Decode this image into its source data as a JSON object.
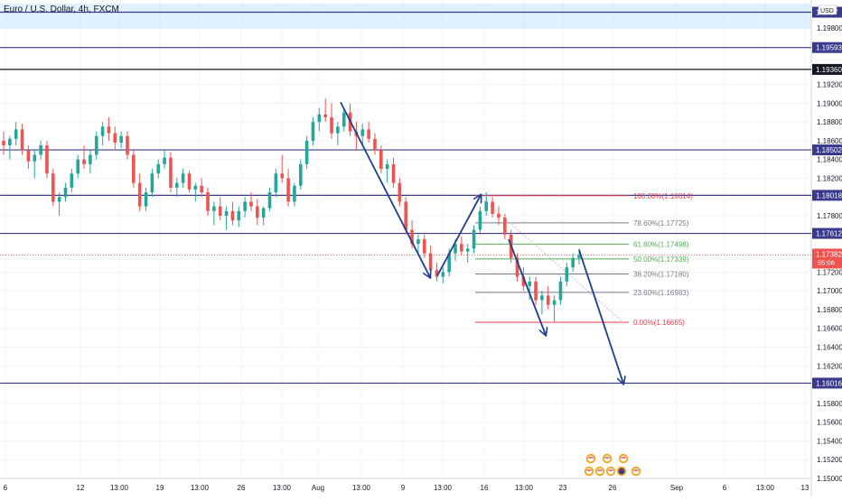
{
  "header": {
    "title": "Euro / U.S. Dollar, 4h, FXCM",
    "currency": "USD"
  },
  "colors": {
    "up": "#26a69a",
    "down": "#ef5350",
    "level": "#3a3a8c",
    "black_level": "#131722",
    "arrow": "#1c3f8f",
    "fib_red": "#f23645",
    "fib_green": "#4caf50",
    "fib_gray": "#787b86",
    "grid": "#f0f3fa",
    "axis_text": "#131722"
  },
  "chart_data": {
    "type": "candlestick",
    "title": "Euro / U.S. Dollar, 4h, FXCM",
    "y_range": [
      1.15,
      1.201
    ],
    "x_range": [
      0,
      913
    ],
    "y_ticks": [
      "1.19800",
      "1.19200",
      "1.19000",
      "1.18800",
      "1.18600",
      "1.18400",
      "1.18200",
      "1.17800",
      "1.17200",
      "1.17000",
      "1.16800",
      "1.16600",
      "1.16400",
      "1.16200",
      "1.15800",
      "1.15600",
      "1.15400",
      "1.15200",
      "1.15000"
    ],
    "x_ticks": [
      {
        "label": "6",
        "x": 6
      },
      {
        "label": "12",
        "x": 89
      },
      {
        "label": "13:00",
        "x": 132
      },
      {
        "label": "19",
        "x": 177
      },
      {
        "label": "13:00",
        "x": 221
      },
      {
        "label": "26",
        "x": 267
      },
      {
        "label": "13:00",
        "x": 312
      },
      {
        "label": "Aug",
        "x": 352
      },
      {
        "label": "13:00",
        "x": 400
      },
      {
        "label": "9",
        "x": 446
      },
      {
        "label": "13:00",
        "x": 490
      },
      {
        "label": "16",
        "x": 536
      },
      {
        "label": "13:00",
        "x": 580
      },
      {
        "label": "23",
        "x": 623
      },
      {
        "label": "26",
        "x": 678
      },
      {
        "label": "Sep",
        "x": 749
      },
      {
        "label": "6",
        "x": 802
      },
      {
        "label": "13:00",
        "x": 847
      },
      {
        "label": "13",
        "x": 891
      }
    ],
    "horizontal_levels": [
      {
        "label": "1.1997",
        "value": 1.1997,
        "color": "level",
        "shaded": true
      },
      {
        "label": "1.19593",
        "value": 1.19593,
        "color": "level"
      },
      {
        "label": "1.19360",
        "value": 1.1936,
        "color": "black_level"
      },
      {
        "label": "1.18502",
        "value": 1.18502,
        "color": "level"
      },
      {
        "label": "1.18018",
        "value": 1.18018,
        "color": "level"
      },
      {
        "label": "1.17612",
        "value": 1.17612,
        "color": "level"
      },
      {
        "label": "1.16016",
        "value": 1.16016,
        "color": "level"
      }
    ],
    "current_price": {
      "label": "1.17382",
      "value": 1.17382,
      "countdown": "55:06"
    },
    "fibonacci": {
      "x_start": 526,
      "x_end": 775,
      "levels": [
        {
          "ratio": "100.00%",
          "price": "1.18014",
          "value": 1.18014,
          "color": "fib_red"
        },
        {
          "ratio": "78.60%",
          "price": "1.17725",
          "value": 1.17725,
          "color": "fib_gray"
        },
        {
          "ratio": "61.80%",
          "price": "1.17498",
          "value": 1.17498,
          "color": "fib_green"
        },
        {
          "ratio": "50.00%",
          "price": "1.17339",
          "value": 1.17339,
          "color": "fib_green"
        },
        {
          "ratio": "38.20%",
          "price": "1.17180",
          "value": 1.1718,
          "color": "fib_gray"
        },
        {
          "ratio": "23.60%",
          "price": "1.16983",
          "value": 1.16983,
          "color": "fib_gray"
        },
        {
          "ratio": "0.00%",
          "price": "1.16665",
          "value": 1.16665,
          "color": "fib_red"
        }
      ]
    },
    "arrows": [
      {
        "from": [
          377,
          1.1901
        ],
        "to": [
          476,
          1.17145
        ]
      },
      {
        "from": [
          484,
          1.1716
        ],
        "to": [
          532,
          1.1802
        ]
      },
      {
        "from": [
          563,
          1.1755
        ],
        "to": [
          604,
          1.1653
        ]
      },
      {
        "from": [
          641,
          1.17435
        ],
        "to": [
          690,
          1.16012
        ]
      }
    ],
    "candles": [
      [
        1.186,
        1.187,
        1.1845,
        1.1855
      ],
      [
        1.1855,
        1.1865,
        1.184,
        1.1862
      ],
      [
        1.1862,
        1.188,
        1.1855,
        1.1872
      ],
      [
        1.1872,
        1.1878,
        1.1845,
        1.185
      ],
      [
        1.185,
        1.1855,
        1.183,
        1.1838
      ],
      [
        1.1838,
        1.185,
        1.182,
        1.1845
      ],
      [
        1.1845,
        1.186,
        1.184,
        1.1855
      ],
      [
        1.1855,
        1.186,
        1.182,
        1.1825
      ],
      [
        1.1825,
        1.183,
        1.179,
        1.1795
      ],
      [
        1.1795,
        1.1805,
        1.178,
        1.18
      ],
      [
        1.18,
        1.1815,
        1.1795,
        1.181
      ],
      [
        1.181,
        1.183,
        1.1805,
        1.1825
      ],
      [
        1.1825,
        1.1845,
        1.182,
        1.184
      ],
      [
        1.184,
        1.1855,
        1.183,
        1.1835
      ],
      [
        1.1835,
        1.185,
        1.1825,
        1.1845
      ],
      [
        1.1845,
        1.187,
        1.184,
        1.1865
      ],
      [
        1.1865,
        1.188,
        1.1855,
        1.1875
      ],
      [
        1.1875,
        1.1885,
        1.186,
        1.1868
      ],
      [
        1.1868,
        1.1875,
        1.185,
        1.1858
      ],
      [
        1.1858,
        1.187,
        1.1852,
        1.1865
      ],
      [
        1.1865,
        1.187,
        1.184,
        1.1845
      ],
      [
        1.1845,
        1.185,
        1.181,
        1.1815
      ],
      [
        1.1815,
        1.1825,
        1.1785,
        1.179
      ],
      [
        1.179,
        1.181,
        1.1785,
        1.1805
      ],
      [
        1.1805,
        1.183,
        1.18,
        1.1825
      ],
      [
        1.1825,
        1.184,
        1.182,
        1.1835
      ],
      [
        1.1835,
        1.185,
        1.183,
        1.1842
      ],
      [
        1.1842,
        1.1848,
        1.1805,
        1.181
      ],
      [
        1.181,
        1.182,
        1.18,
        1.1815
      ],
      [
        1.1815,
        1.183,
        1.181,
        1.1825
      ],
      [
        1.1825,
        1.1828,
        1.1805,
        1.1808
      ],
      [
        1.1808,
        1.1815,
        1.1795,
        1.1812
      ],
      [
        1.1812,
        1.182,
        1.18,
        1.1805
      ],
      [
        1.1805,
        1.181,
        1.178,
        1.1785
      ],
      [
        1.1785,
        1.1795,
        1.177,
        1.179
      ],
      [
        1.179,
        1.18,
        1.1775,
        1.178
      ],
      [
        1.178,
        1.179,
        1.1765,
        1.1785
      ],
      [
        1.1785,
        1.1795,
        1.177,
        1.1775
      ],
      [
        1.1775,
        1.179,
        1.1768,
        1.1785
      ],
      [
        1.1785,
        1.18,
        1.1778,
        1.1795
      ],
      [
        1.1795,
        1.1805,
        1.1785,
        1.179
      ],
      [
        1.179,
        1.1798,
        1.177,
        1.1778
      ],
      [
        1.1778,
        1.179,
        1.177,
        1.1788
      ],
      [
        1.1788,
        1.181,
        1.1785,
        1.1805
      ],
      [
        1.1805,
        1.183,
        1.18,
        1.1825
      ],
      [
        1.1825,
        1.1845,
        1.1815,
        1.182
      ],
      [
        1.182,
        1.183,
        1.179,
        1.1795
      ],
      [
        1.1795,
        1.1815,
        1.179,
        1.1812
      ],
      [
        1.1812,
        1.184,
        1.1808,
        1.1835
      ],
      [
        1.1835,
        1.1865,
        1.183,
        1.186
      ],
      [
        1.186,
        1.1885,
        1.1855,
        1.188
      ],
      [
        1.188,
        1.1895,
        1.187,
        1.1888
      ],
      [
        1.1888,
        1.1905,
        1.188,
        1.1885
      ],
      [
        1.1885,
        1.19,
        1.1862,
        1.1868
      ],
      [
        1.1868,
        1.188,
        1.1855,
        1.1875
      ],
      [
        1.1875,
        1.1895,
        1.187,
        1.189
      ],
      [
        1.189,
        1.19,
        1.1865,
        1.187
      ],
      [
        1.187,
        1.188,
        1.185,
        1.1865
      ],
      [
        1.1865,
        1.1878,
        1.1855,
        1.1872
      ],
      [
        1.1872,
        1.188,
        1.1858,
        1.1862
      ],
      [
        1.1862,
        1.1868,
        1.1845,
        1.185
      ],
      [
        1.185,
        1.1855,
        1.1825,
        1.183
      ],
      [
        1.183,
        1.184,
        1.1815,
        1.1835
      ],
      [
        1.1835,
        1.1842,
        1.181,
        1.1815
      ],
      [
        1.1815,
        1.182,
        1.179,
        1.1795
      ],
      [
        1.1795,
        1.18,
        1.176,
        1.1765
      ],
      [
        1.1765,
        1.1775,
        1.1745,
        1.175
      ],
      [
        1.175,
        1.176,
        1.1738,
        1.1755
      ],
      [
        1.1755,
        1.176,
        1.1735,
        1.174
      ],
      [
        1.174,
        1.1748,
        1.1718,
        1.1722
      ],
      [
        1.1722,
        1.173,
        1.171,
        1.1715
      ],
      [
        1.1715,
        1.1725,
        1.1708,
        1.172
      ],
      [
        1.172,
        1.1745,
        1.1715,
        1.174
      ],
      [
        1.174,
        1.1755,
        1.1732,
        1.175
      ],
      [
        1.175,
        1.1758,
        1.1738,
        1.1742
      ],
      [
        1.1742,
        1.175,
        1.173,
        1.1745
      ],
      [
        1.1745,
        1.177,
        1.174,
        1.1765
      ],
      [
        1.1765,
        1.179,
        1.176,
        1.1785
      ],
      [
        1.1785,
        1.1805,
        1.178,
        1.1795
      ],
      [
        1.1795,
        1.18,
        1.1778,
        1.1782
      ],
      [
        1.1782,
        1.179,
        1.177,
        1.1778
      ],
      [
        1.1778,
        1.1782,
        1.1755,
        1.176
      ],
      [
        1.176,
        1.1765,
        1.173,
        1.1735
      ],
      [
        1.1735,
        1.174,
        1.171,
        1.1715
      ],
      [
        1.1715,
        1.1725,
        1.17,
        1.1705
      ],
      [
        1.1705,
        1.1715,
        1.169,
        1.171
      ],
      [
        1.171,
        1.1715,
        1.1685,
        1.169
      ],
      [
        1.169,
        1.17,
        1.1675,
        1.1695
      ],
      [
        1.1695,
        1.1705,
        1.168,
        1.1685
      ],
      [
        1.1685,
        1.1695,
        1.1666,
        1.169
      ],
      [
        1.169,
        1.1715,
        1.1685,
        1.171
      ],
      [
        1.171,
        1.173,
        1.1705,
        1.1725
      ],
      [
        1.1725,
        1.174,
        1.172,
        1.1735
      ],
      [
        1.1735,
        1.1745,
        1.1728,
        1.1738
      ]
    ]
  },
  "events": [
    "us-flag-event",
    "us-flag-event",
    "us-flag-event",
    "us-flag-event",
    "us-flag-event",
    "us-flag-event",
    "us-flag-event",
    "us-flag-event"
  ]
}
